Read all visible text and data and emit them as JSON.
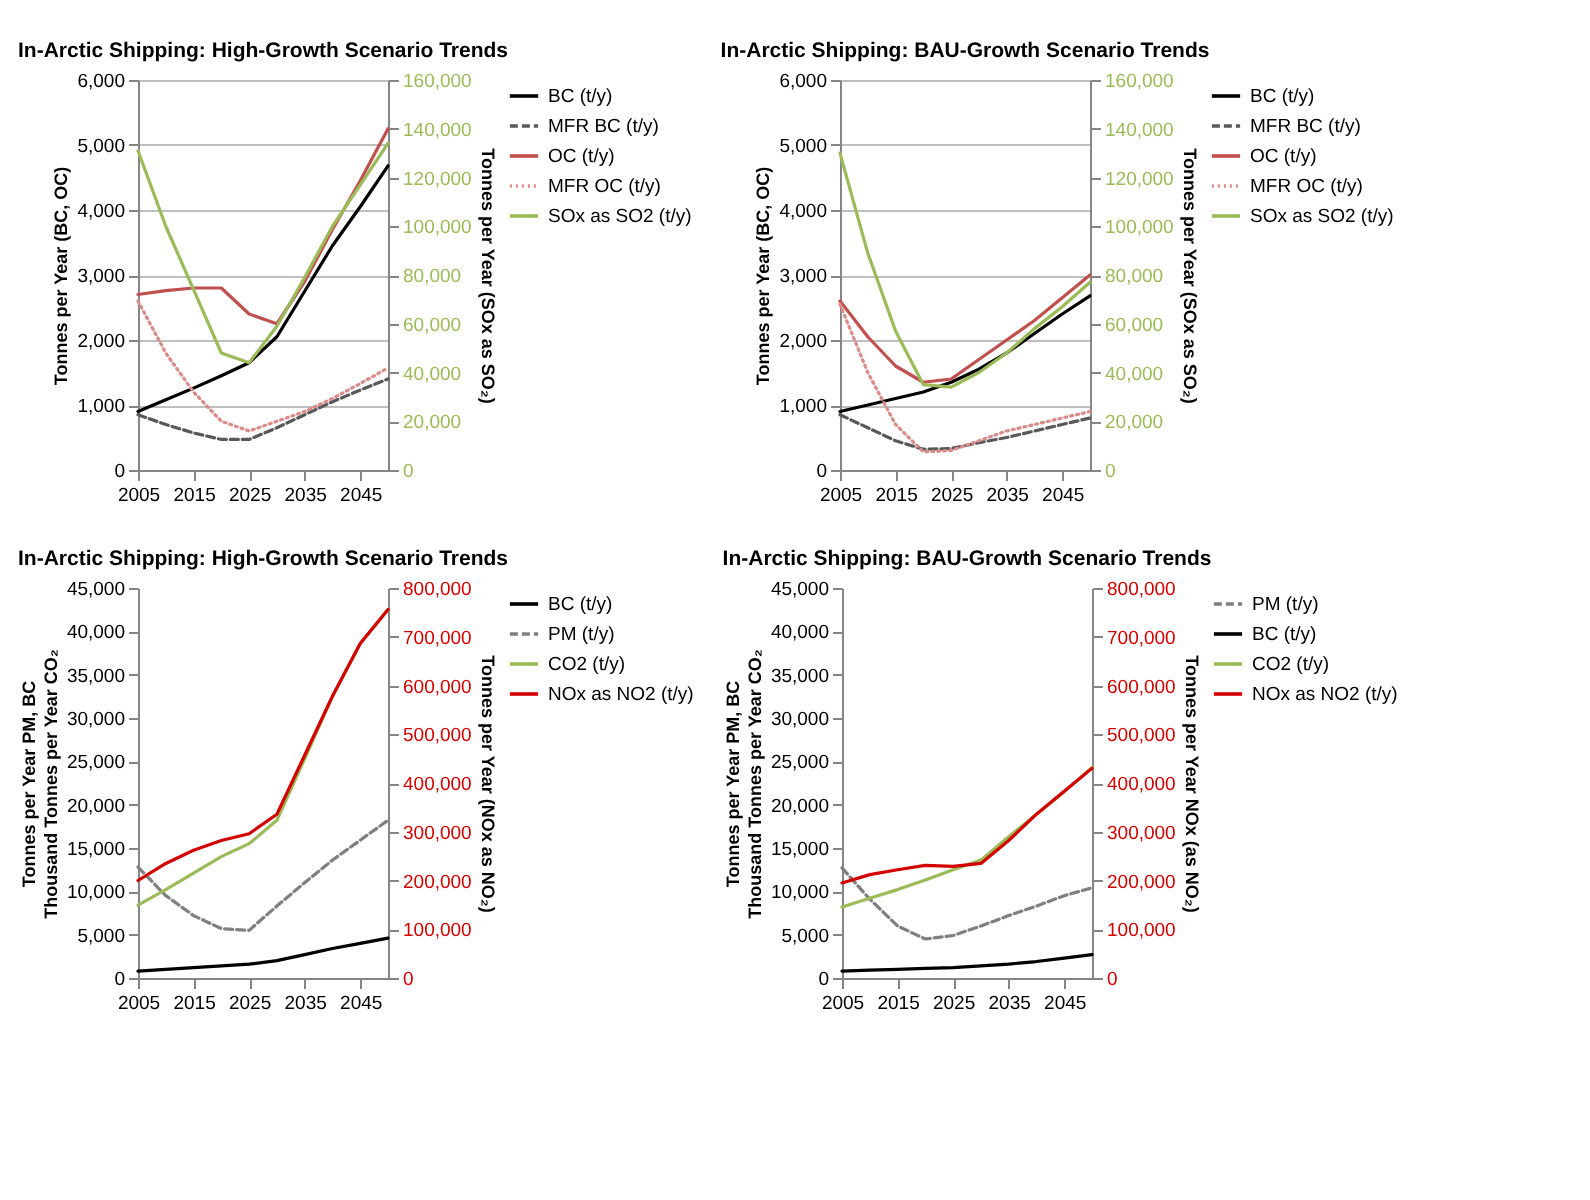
{
  "chart_data": [
    {
      "type": "line",
      "title": "In-Arctic Shipping: High-Growth Scenario Trends",
      "ylabel": "Tonnes per Year (BC, OC)",
      "y2label": "Tonnes per Year (SOx as SO₂)",
      "x": [
        2005,
        2010,
        2015,
        2020,
        2025,
        2030,
        2035,
        2040,
        2045,
        2050
      ],
      "xlim": [
        2005,
        2050
      ],
      "xticks": [
        2005,
        2015,
        2025,
        2035,
        2045
      ],
      "ylim": [
        0,
        6000
      ],
      "yticks": [
        {
          "value": 0,
          "label": "0"
        },
        {
          "value": 1000,
          "label": "1,000"
        },
        {
          "value": 2000,
          "label": "2,000"
        },
        {
          "value": 3000,
          "label": "3,000"
        },
        {
          "value": 4000,
          "label": "4,000"
        },
        {
          "value": 5000,
          "label": "5,000"
        },
        {
          "value": 6000,
          "label": "6,000"
        }
      ],
      "y2lim": [
        0,
        160000
      ],
      "y2ticks": [
        {
          "value": 0,
          "label": "0"
        },
        {
          "value": 20000,
          "label": "20,000"
        },
        {
          "value": 40000,
          "label": "40,000"
        },
        {
          "value": 60000,
          "label": "60,000"
        },
        {
          "value": 80000,
          "label": "80,000"
        },
        {
          "value": 100000,
          "label": "100,000"
        },
        {
          "value": 120000,
          "label": "120,000"
        },
        {
          "value": 140000,
          "label": "140,000"
        },
        {
          "value": 160000,
          "label": "160,000"
        }
      ],
      "grid": "y",
      "legend": "right",
      "series": [
        {
          "name": "BC (t/y)",
          "color": "#000000",
          "line_style": "solid",
          "values": [
            900,
            1080,
            1260,
            1450,
            1650,
            2050,
            2750,
            3450,
            4050,
            4680
          ]
        },
        {
          "name": "MFR BC (t/y)",
          "color": "#595959",
          "line_style": "dashed",
          "values": [
            850,
            700,
            570,
            470,
            470,
            650,
            850,
            1050,
            1230,
            1400
          ]
        },
        {
          "name": "OC (t/y)",
          "color": "#c0504d",
          "line_style": "solid",
          "values": [
            2700,
            2760,
            2800,
            2800,
            2400,
            2250,
            2900,
            3700,
            4450,
            5250
          ]
        },
        {
          "name": "MFR OC (t/y)",
          "color": "#d98c8a",
          "line_style": "dotted",
          "values": [
            2600,
            1800,
            1200,
            750,
            600,
            750,
            900,
            1100,
            1330,
            1570
          ]
        },
        {
          "name": "SOx as SO2 (t/y)",
          "color": "#9bbb59",
          "line_style": "solid",
          "axis": "y2",
          "values": [
            131000,
            100000,
            74000,
            48000,
            44000,
            59000,
            79000,
            100000,
            117000,
            134000
          ]
        }
      ]
    },
    {
      "type": "line",
      "title": "In-Arctic Shipping: BAU-Growth Scenario Trends",
      "ylabel": "Tonnes per Year (BC, OC)",
      "y2label": "Tonnes per Year (SOx as SO₂)",
      "x": [
        2005,
        2010,
        2015,
        2020,
        2025,
        2030,
        2035,
        2040,
        2045,
        2050
      ],
      "xlim": [
        2005,
        2050
      ],
      "xticks": [
        2005,
        2015,
        2025,
        2035,
        2045
      ],
      "ylim": [
        0,
        6000
      ],
      "yticks": [
        {
          "value": 0,
          "label": "0"
        },
        {
          "value": 1000,
          "label": "1,000"
        },
        {
          "value": 2000,
          "label": "2,000"
        },
        {
          "value": 3000,
          "label": "3,000"
        },
        {
          "value": 4000,
          "label": "4,000"
        },
        {
          "value": 5000,
          "label": "5,000"
        },
        {
          "value": 6000,
          "label": "6,000"
        }
      ],
      "y2lim": [
        0,
        160000
      ],
      "y2ticks": [
        {
          "value": 0,
          "label": "0"
        },
        {
          "value": 20000,
          "label": "20,000"
        },
        {
          "value": 40000,
          "label": "40,000"
        },
        {
          "value": 60000,
          "label": "60,000"
        },
        {
          "value": 80000,
          "label": "80,000"
        },
        {
          "value": 100000,
          "label": "100,000"
        },
        {
          "value": 120000,
          "label": "120,000"
        },
        {
          "value": 140000,
          "label": "140,000"
        },
        {
          "value": 160000,
          "label": "160,000"
        }
      ],
      "grid": "y",
      "legend": "right",
      "series": [
        {
          "name": "BC (t/y)",
          "color": "#000000",
          "line_style": "solid",
          "values": [
            900,
            1000,
            1100,
            1200,
            1350,
            1550,
            1800,
            2100,
            2400,
            2680
          ]
        },
        {
          "name": "MFR BC (t/y)",
          "color": "#595959",
          "line_style": "dashed",
          "values": [
            850,
            650,
            450,
            320,
            330,
            420,
            500,
            600,
            700,
            800
          ]
        },
        {
          "name": "OC (t/y)",
          "color": "#c0504d",
          "line_style": "solid",
          "values": [
            2600,
            2050,
            1600,
            1350,
            1400,
            1700,
            2000,
            2300,
            2650,
            3000
          ]
        },
        {
          "name": "MFR OC (t/y)",
          "color": "#d98c8a",
          "line_style": "dotted",
          "values": [
            2550,
            1500,
            700,
            280,
            300,
            450,
            600,
            700,
            800,
            900
          ]
        },
        {
          "name": "SOx as SO2 (t/y)",
          "color": "#9bbb59",
          "line_style": "solid",
          "axis": "y2",
          "values": [
            130000,
            89000,
            57000,
            35000,
            34000,
            40000,
            48000,
            58000,
            67000,
            77000
          ]
        }
      ]
    },
    {
      "type": "line",
      "title": "In-Arctic Shipping: High-Growth Scenario Trends",
      "ylabel": "Tonnes per Year PM, BC\nThousand Tonnes per Year CO₂",
      "y2label": "Tonnes per Year (NOx as NO₂)",
      "x": [
        2005,
        2010,
        2015,
        2020,
        2025,
        2030,
        2035,
        2040,
        2045,
        2050
      ],
      "xlim": [
        2005,
        2050
      ],
      "xticks": [
        2005,
        2015,
        2025,
        2035,
        2045
      ],
      "ylim": [
        0,
        45000
      ],
      "yticks": [
        {
          "value": 0,
          "label": "0"
        },
        {
          "value": 5000,
          "label": "5,000"
        },
        {
          "value": 10000,
          "label": "10,000"
        },
        {
          "value": 15000,
          "label": "15,000"
        },
        {
          "value": 20000,
          "label": "20,000"
        },
        {
          "value": 25000,
          "label": "25,000"
        },
        {
          "value": 30000,
          "label": "30,000"
        },
        {
          "value": 35000,
          "label": "35,000"
        },
        {
          "value": 40000,
          "label": "40,000"
        },
        {
          "value": 45000,
          "label": "45,000"
        }
      ],
      "y2lim": [
        0,
        800000
      ],
      "y2ticks": [
        {
          "value": 0,
          "label": "0"
        },
        {
          "value": 100000,
          "label": "100,000"
        },
        {
          "value": 200000,
          "label": "200,000"
        },
        {
          "value": 300000,
          "label": "300,000"
        },
        {
          "value": 400000,
          "label": "400,000"
        },
        {
          "value": 500000,
          "label": "500,000"
        },
        {
          "value": 600000,
          "label": "600,000"
        },
        {
          "value": 700000,
          "label": "700,000"
        },
        {
          "value": 800000,
          "label": "800,000"
        }
      ],
      "grid": false,
      "legend": "right",
      "series": [
        {
          "name": "BC (t/y)",
          "color": "#000000",
          "line_style": "solid",
          "values": [
            800,
            1000,
            1200,
            1400,
            1600,
            2000,
            2700,
            3400,
            4000,
            4600
          ]
        },
        {
          "name": "PM (t/y)",
          "color": "#7f7f7f",
          "line_style": "dashed",
          "values": [
            12800,
            9500,
            7200,
            5700,
            5500,
            8300,
            11000,
            13600,
            15900,
            18200
          ]
        },
        {
          "name": "CO2 (t/y)",
          "color": "#9bbb59",
          "line_style": "solid",
          "values": [
            8400,
            10200,
            12100,
            14000,
            15500,
            18200,
            25300,
            32500,
            38600,
            42500
          ]
        },
        {
          "name": "NOx as NO2 (t/y)",
          "color": "#d40000",
          "line_style": "solid",
          "axis": "y2",
          "values": [
            200000,
            235000,
            262000,
            282000,
            296000,
            336000,
            457000,
            578000,
            686000,
            756000
          ]
        }
      ]
    },
    {
      "type": "line",
      "title": "In-Arctic Shipping: BAU-Growth Scenario Trends",
      "ylabel": "Tonnes per Year PM, BC\nThousand Tonnes per Year CO₂",
      "y2label": "Tonnes per Year NOx (as NO₂)",
      "x": [
        2005,
        2010,
        2015,
        2020,
        2025,
        2030,
        2035,
        2040,
        2045,
        2050
      ],
      "xlim": [
        2005,
        2050
      ],
      "xticks": [
        2005,
        2015,
        2025,
        2035,
        2045
      ],
      "ylim": [
        0,
        45000
      ],
      "yticks": [
        {
          "value": 0,
          "label": "0"
        },
        {
          "value": 5000,
          "label": "5,000"
        },
        {
          "value": 10000,
          "label": "10,000"
        },
        {
          "value": 15000,
          "label": "15,000"
        },
        {
          "value": 20000,
          "label": "20,000"
        },
        {
          "value": 25000,
          "label": "25,000"
        },
        {
          "value": 30000,
          "label": "30,000"
        },
        {
          "value": 35000,
          "label": "35,000"
        },
        {
          "value": 40000,
          "label": "40,000"
        },
        {
          "value": 45000,
          "label": "45,000"
        }
      ],
      "y2lim": [
        0,
        800000
      ],
      "y2ticks": [
        {
          "value": 0,
          "label": "0"
        },
        {
          "value": 100000,
          "label": "100,000"
        },
        {
          "value": 200000,
          "label": "200,000"
        },
        {
          "value": 300000,
          "label": "300,000"
        },
        {
          "value": 400000,
          "label": "400,000"
        },
        {
          "value": 500000,
          "label": "500,000"
        },
        {
          "value": 600000,
          "label": "600,000"
        },
        {
          "value": 700000,
          "label": "700,000"
        },
        {
          "value": 800000,
          "label": "800,000"
        }
      ],
      "grid": false,
      "legend": "right",
      "series": [
        {
          "name": "PM (t/y)",
          "color": "#7f7f7f",
          "line_style": "dashed",
          "values": [
            12700,
            9100,
            6000,
            4500,
            4900,
            6000,
            7200,
            8300,
            9500,
            10400
          ]
        },
        {
          "name": "BC (t/y)",
          "color": "#000000",
          "line_style": "solid",
          "values": [
            800,
            900,
            1000,
            1100,
            1200,
            1400,
            1600,
            1900,
            2300,
            2700
          ]
        },
        {
          "name": "CO2 (t/y)",
          "color": "#9bbb59",
          "line_style": "solid",
          "values": [
            8200,
            9200,
            10200,
            11300,
            12500,
            13600,
            16300,
            18900,
            21500,
            24300
          ]
        },
        {
          "name": "NOx as NO2 (t/y)",
          "color": "#d40000",
          "line_style": "solid",
          "axis": "y2",
          "values": [
            195000,
            212000,
            222000,
            231000,
            229000,
            235000,
            282000,
            336000,
            383000,
            430000
          ]
        }
      ]
    }
  ]
}
